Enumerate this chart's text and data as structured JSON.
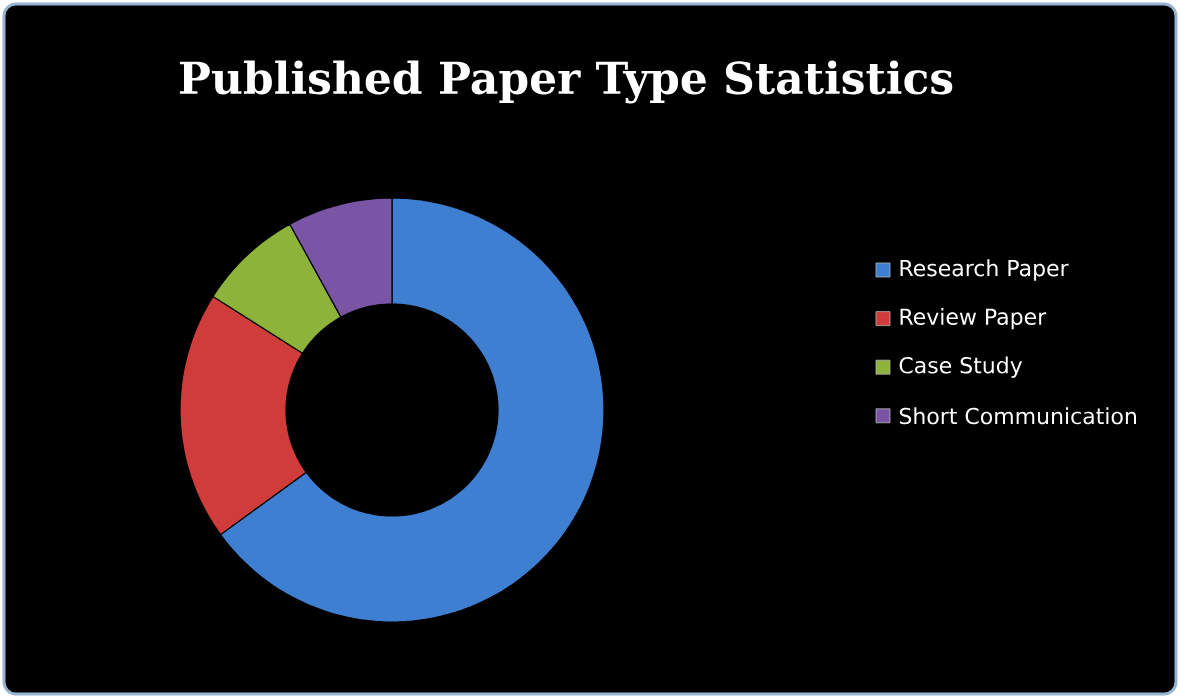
{
  "chart_data": {
    "type": "donut",
    "title": "Published Paper Type Statistics",
    "categories": [
      "Research Paper",
      "Review Paper",
      "Case Study",
      "Short Communication"
    ],
    "values": [
      65,
      19,
      8,
      8
    ],
    "colors": [
      "#3f7fd2",
      "#d03c3a",
      "#8db33a",
      "#7a55a5"
    ],
    "legend": "right"
  }
}
